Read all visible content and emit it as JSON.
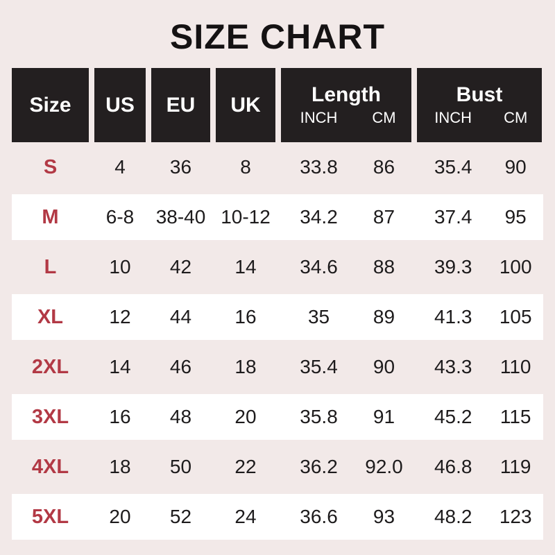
{
  "title": "SIZE CHART",
  "colors": {
    "background": "#f2e9e8",
    "header_bg": "#231f20",
    "header_text": "#ffffff",
    "size_label": "#b23945",
    "cell_text": "#1d1b1c",
    "row_alt_bg": "#ffffff"
  },
  "table": {
    "columns": [
      {
        "key": "size",
        "label": "Size"
      },
      {
        "key": "us",
        "label": "US"
      },
      {
        "key": "eu",
        "label": "EU"
      },
      {
        "key": "uk",
        "label": "UK"
      },
      {
        "key": "length",
        "label": "Length",
        "sub": [
          "INCH",
          "CM"
        ]
      },
      {
        "key": "bust",
        "label": "Bust",
        "sub": [
          "INCH",
          "CM"
        ]
      }
    ],
    "rows": [
      {
        "size": "S",
        "us": "4",
        "eu": "36",
        "uk": "8",
        "length_inch": "33.8",
        "length_cm": "86",
        "bust_inch": "35.4",
        "bust_cm": "90"
      },
      {
        "size": "M",
        "us": "6-8",
        "eu": "38-40",
        "uk": "10-12",
        "length_inch": "34.2",
        "length_cm": "87",
        "bust_inch": "37.4",
        "bust_cm": "95"
      },
      {
        "size": "L",
        "us": "10",
        "eu": "42",
        "uk": "14",
        "length_inch": "34.6",
        "length_cm": "88",
        "bust_inch": "39.3",
        "bust_cm": "100"
      },
      {
        "size": "XL",
        "us": "12",
        "eu": "44",
        "uk": "16",
        "length_inch": "35",
        "length_cm": "89",
        "bust_inch": "41.3",
        "bust_cm": "105"
      },
      {
        "size": "2XL",
        "us": "14",
        "eu": "46",
        "uk": "18",
        "length_inch": "35.4",
        "length_cm": "90",
        "bust_inch": "43.3",
        "bust_cm": "110"
      },
      {
        "size": "3XL",
        "us": "16",
        "eu": "48",
        "uk": "20",
        "length_inch": "35.8",
        "length_cm": "91",
        "bust_inch": "45.2",
        "bust_cm": "115"
      },
      {
        "size": "4XL",
        "us": "18",
        "eu": "50",
        "uk": "22",
        "length_inch": "36.2",
        "length_cm": "92.0",
        "bust_inch": "46.8",
        "bust_cm": "119"
      },
      {
        "size": "5XL",
        "us": "20",
        "eu": "52",
        "uk": "24",
        "length_inch": "36.6",
        "length_cm": "93",
        "bust_inch": "48.2",
        "bust_cm": "123"
      }
    ]
  }
}
